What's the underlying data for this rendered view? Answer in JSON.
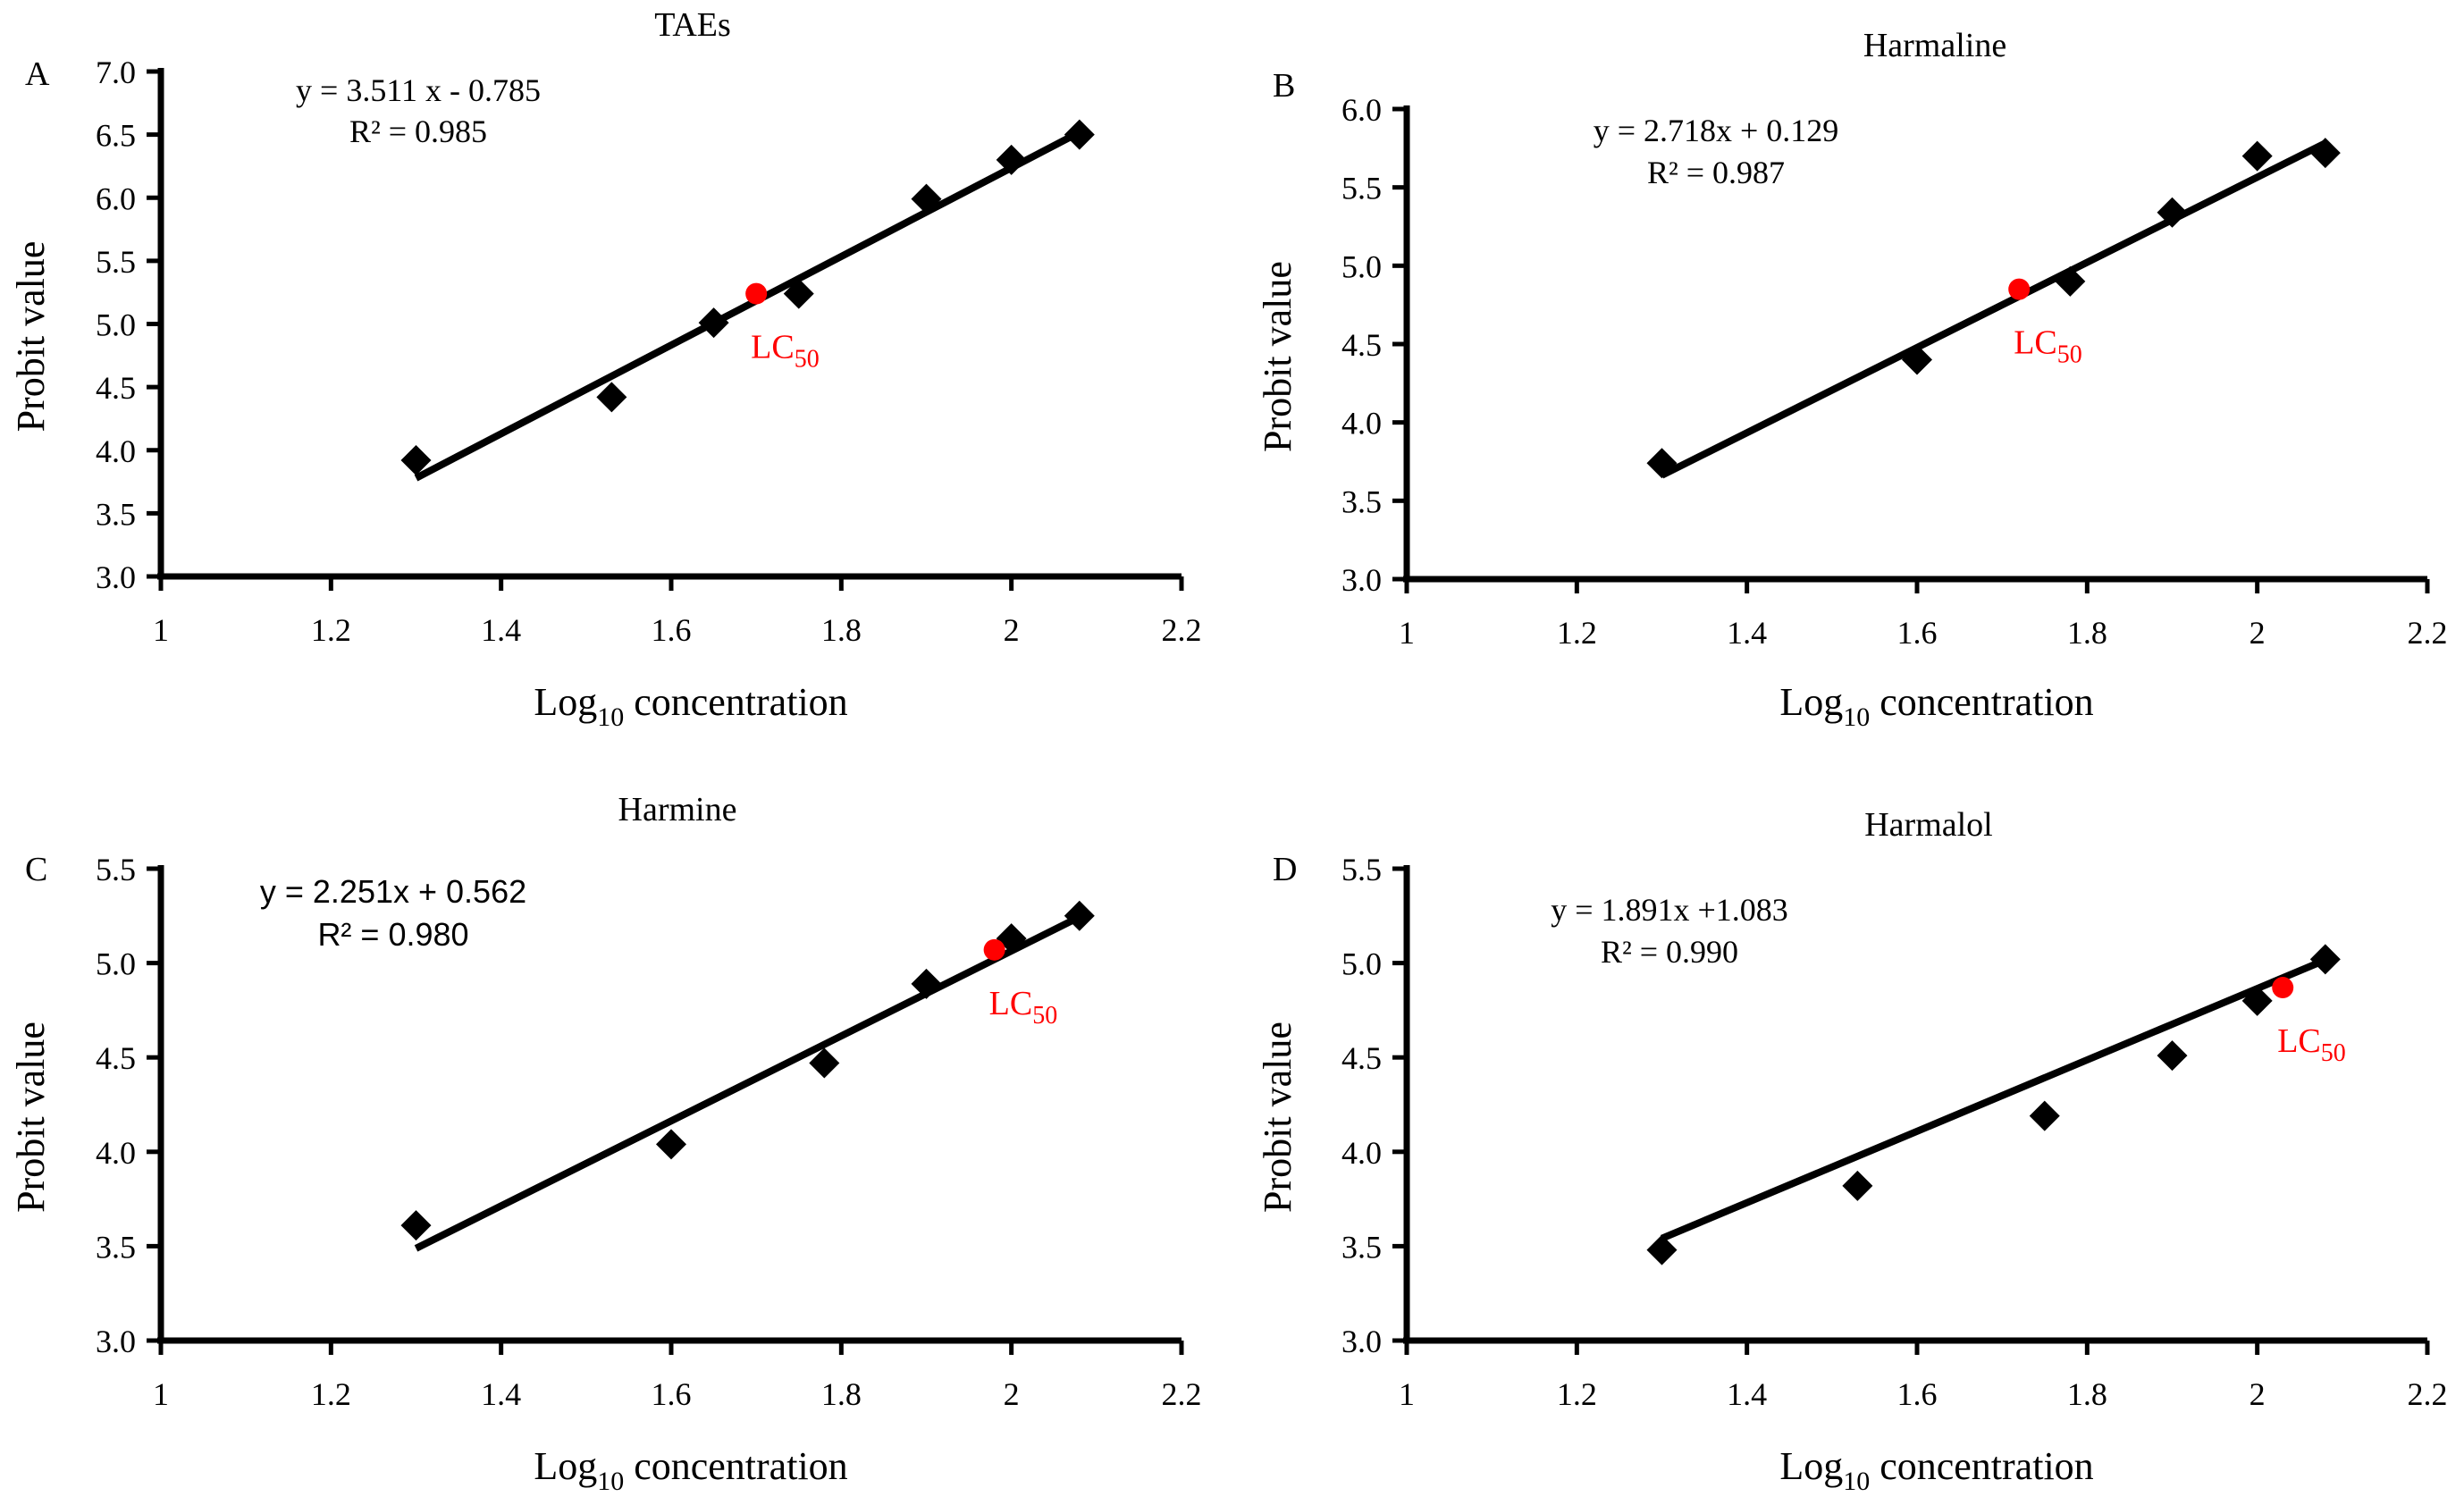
{
  "colors": {
    "axis": "#000000",
    "marker": "#000000",
    "lc50": "#ff0000",
    "background": "#ffffff"
  },
  "chart_data": [
    {
      "type": "scatter",
      "panel": "A",
      "title": "TAEs",
      "xlabel": "Log10 concentration",
      "xlabel_main": "Log",
      "xlabel_sub": "10",
      "xlabel_rest": " concentration",
      "ylabel": "Probit value",
      "xlim": [
        1,
        2.2
      ],
      "ylim": [
        3.0,
        7.0
      ],
      "xticks": [
        "1",
        "1.2",
        "1.4",
        "1.6",
        "1.8",
        "2",
        "2.2"
      ],
      "yticks": [
        "3.0",
        "3.5",
        "4.0",
        "4.5",
        "5.0",
        "5.5",
        "6.0",
        "6.5",
        "7.0"
      ],
      "equation": "y = 3.511 x - 0.785",
      "r2": "R² = 0.985",
      "fit": {
        "slope": 3.511,
        "intercept": -0.785,
        "x_range": [
          1.3,
          2.08
        ]
      },
      "points": [
        {
          "x": 1.3,
          "y": 3.92
        },
        {
          "x": 1.53,
          "y": 4.42
        },
        {
          "x": 1.65,
          "y": 5.01
        },
        {
          "x": 1.75,
          "y": 5.24
        },
        {
          "x": 1.9,
          "y": 5.99
        },
        {
          "x": 2.0,
          "y": 6.3
        },
        {
          "x": 2.08,
          "y": 6.5
        }
      ],
      "lc50": {
        "x": 1.7,
        "y": 5.24,
        "label": "LC",
        "sub": "50"
      }
    },
    {
      "type": "scatter",
      "panel": "B",
      "title": "Harmaline",
      "xlabel": "Log10 concentration",
      "xlabel_main": "Log",
      "xlabel_sub": "10",
      "xlabel_rest": " concentration",
      "ylabel": "Probit value",
      "xlim": [
        1,
        2.2
      ],
      "ylim": [
        3.0,
        6.0
      ],
      "xticks": [
        "1",
        "1.2",
        "1.4",
        "1.6",
        "1.8",
        "2",
        "2.2"
      ],
      "yticks": [
        "3.0",
        "3.5",
        "4.0",
        "4.5",
        "5.0",
        "5.5",
        "6.0"
      ],
      "equation": "y = 2.718x + 0.129",
      "r2": "R² = 0.987",
      "fit": {
        "slope": 2.718,
        "intercept": 0.129,
        "x_range": [
          1.3,
          2.08
        ]
      },
      "points": [
        {
          "x": 1.3,
          "y": 3.74
        },
        {
          "x": 1.6,
          "y": 4.4
        },
        {
          "x": 1.78,
          "y": 4.9
        },
        {
          "x": 1.9,
          "y": 5.34
        },
        {
          "x": 2.0,
          "y": 5.7
        },
        {
          "x": 2.08,
          "y": 5.72
        }
      ],
      "lc50": {
        "x": 1.72,
        "y": 4.85,
        "label": "LC",
        "sub": "50"
      }
    },
    {
      "type": "scatter",
      "panel": "C",
      "title": "Harmine",
      "xlabel": "Log10 concentration",
      "xlabel_main": "Log",
      "xlabel_sub": "10",
      "xlabel_rest": " concentration",
      "ylabel": "Probit value",
      "xlim": [
        1,
        2.2
      ],
      "ylim": [
        3.0,
        5.5
      ],
      "xticks": [
        "1",
        "1.2",
        "1.4",
        "1.6",
        "1.8",
        "2",
        "2.2"
      ],
      "yticks": [
        "3.0",
        "3.5",
        "4.0",
        "4.5",
        "5.0",
        "5.5"
      ],
      "equation": "y = 2.251x + 0.562",
      "r2": "R² = 0.980",
      "fit": {
        "slope": 2.251,
        "intercept": 0.562,
        "x_range": [
          1.3,
          2.08
        ]
      },
      "points": [
        {
          "x": 1.3,
          "y": 3.61
        },
        {
          "x": 1.6,
          "y": 4.04
        },
        {
          "x": 1.78,
          "y": 4.47
        },
        {
          "x": 1.9,
          "y": 4.89
        },
        {
          "x": 2.0,
          "y": 5.13
        },
        {
          "x": 2.08,
          "y": 5.25
        }
      ],
      "lc50": {
        "x": 1.98,
        "y": 5.07,
        "label": "LC",
        "sub": "50"
      }
    },
    {
      "type": "scatter",
      "panel": "D",
      "title": "Harmalol",
      "xlabel": "Log10 concentration",
      "xlabel_main": "Log",
      "xlabel_sub": "10",
      "xlabel_rest": " concentration",
      "ylabel": "Probit value",
      "xlim": [
        1,
        2.2
      ],
      "ylim": [
        3.0,
        5.5
      ],
      "xticks": [
        "1",
        "1.2",
        "1.4",
        "1.6",
        "1.8",
        "2",
        "2.2"
      ],
      "yticks": [
        "3.0",
        "3.5",
        "4.0",
        "4.5",
        "5.0",
        "5.5"
      ],
      "equation": "y = 1.891x +1.083",
      "r2": "R² = 0.990",
      "fit": {
        "slope": 1.891,
        "intercept": 1.083,
        "x_range": [
          1.3,
          2.08
        ]
      },
      "points": [
        {
          "x": 1.3,
          "y": 3.48
        },
        {
          "x": 1.53,
          "y": 3.82
        },
        {
          "x": 1.75,
          "y": 4.19
        },
        {
          "x": 1.9,
          "y": 4.51
        },
        {
          "x": 2.0,
          "y": 4.8
        },
        {
          "x": 2.08,
          "y": 5.02
        }
      ],
      "lc50": {
        "x": 2.03,
        "y": 4.87,
        "label": "LC",
        "sub": "50"
      }
    }
  ]
}
